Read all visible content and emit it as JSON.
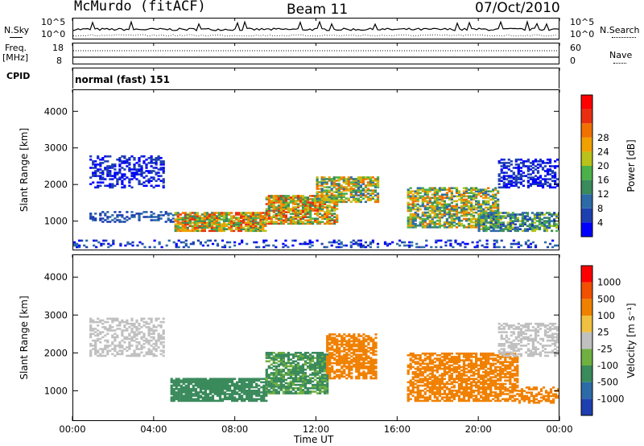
{
  "header": {
    "station": "McMurdo (fitACF)",
    "beam": "Beam 11",
    "date": "07/Oct/2010"
  },
  "strip_labels": {
    "nsky": "N.Sky",
    "nsky_hi": "10^5",
    "nsky_lo": "10^0",
    "nsearch": "N.Search",
    "nsearch_hi": "10^5",
    "nsearch_lo": "10^0",
    "freq": "Freq.",
    "freq_unit": "[MHz]",
    "freq_hi": "18",
    "freq_lo": "8",
    "nave": "Nave",
    "nave_hi": "60",
    "nave_lo": "0",
    "cpid": "CPID",
    "cpid_value": "normal (fast) 151"
  },
  "colors": {
    "power_scale": [
      "#0000ff",
      "#1e3fb0",
      "#2d6aa8",
      "#3a8a5c",
      "#4cb04a",
      "#b9c21a",
      "#f0a000",
      "#f07000",
      "#e83010",
      "#ff0000"
    ],
    "velocity_scale": [
      "#1e3fb0",
      "#2d6aa8",
      "#3a8a5c",
      "#70b040",
      "#c0c0c0",
      "#f0c040",
      "#f08000",
      "#f05000",
      "#ff0000"
    ]
  },
  "chart_data": [
    {
      "type": "heatmap",
      "title": "Power",
      "ylabel": "Slant Range [km]",
      "y_ticks": [
        "1000",
        "2000",
        "3000",
        "4000"
      ],
      "ylim": [
        200,
        4600
      ],
      "xlim": [
        0,
        24
      ],
      "colorbar_label": "Power [dB]",
      "colorbar_ticks": [
        "4",
        "8",
        "12",
        "16",
        "20",
        "24",
        "28"
      ],
      "clim": [
        0,
        32
      ]
    },
    {
      "type": "heatmap",
      "title": "Velocity",
      "ylabel": "Slant Range [km]",
      "y_ticks": [
        "1000",
        "2000",
        "3000",
        "4000"
      ],
      "ylim": [
        200,
        4600
      ],
      "xlim": [
        0,
        24
      ],
      "colorbar_label": "Velocity [m s⁻¹]",
      "colorbar_ticks": [
        "1000",
        "500",
        "100",
        "25",
        "-25",
        "-100",
        "-500",
        "-1000"
      ]
    }
  ],
  "x_axis": {
    "ticks": [
      "00:00",
      "04:00",
      "08:00",
      "12:00",
      "16:00",
      "20:00",
      "00:00"
    ],
    "label": "Time UT"
  }
}
